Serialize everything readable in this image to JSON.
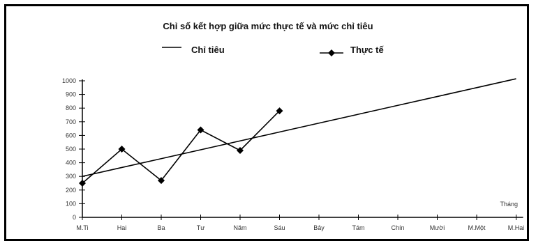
{
  "chart_data": {
    "type": "line",
    "title": "Chỉ số kết hợp giữa mức thực tế và mức chỉ tiêu",
    "xlabel": "Tháng",
    "ylabel": "",
    "categories": [
      "M.Ti",
      "Hai",
      "Ba",
      "Tư",
      "Năm",
      "Sáu",
      "Bảy",
      "Tám",
      "Chín",
      "Mười",
      "M.Một",
      "M.Hai"
    ],
    "ylim": [
      0,
      1000
    ],
    "yticks": [
      0,
      100,
      200,
      300,
      400,
      500,
      600,
      700,
      800,
      900,
      1000
    ],
    "grid": false,
    "legend_position": "top",
    "series": [
      {
        "name": "Chỉ tiêu",
        "style": "line",
        "color": "#000000",
        "values": [
          300,
          365,
          430,
          495,
          560,
          625,
          690,
          755,
          820,
          885,
          950,
          1015
        ]
      },
      {
        "name": "Thực tế",
        "style": "line-marker",
        "color": "#000000",
        "values": [
          250,
          500,
          270,
          640,
          490,
          780,
          null,
          null,
          null,
          null,
          null,
          null
        ]
      }
    ]
  }
}
